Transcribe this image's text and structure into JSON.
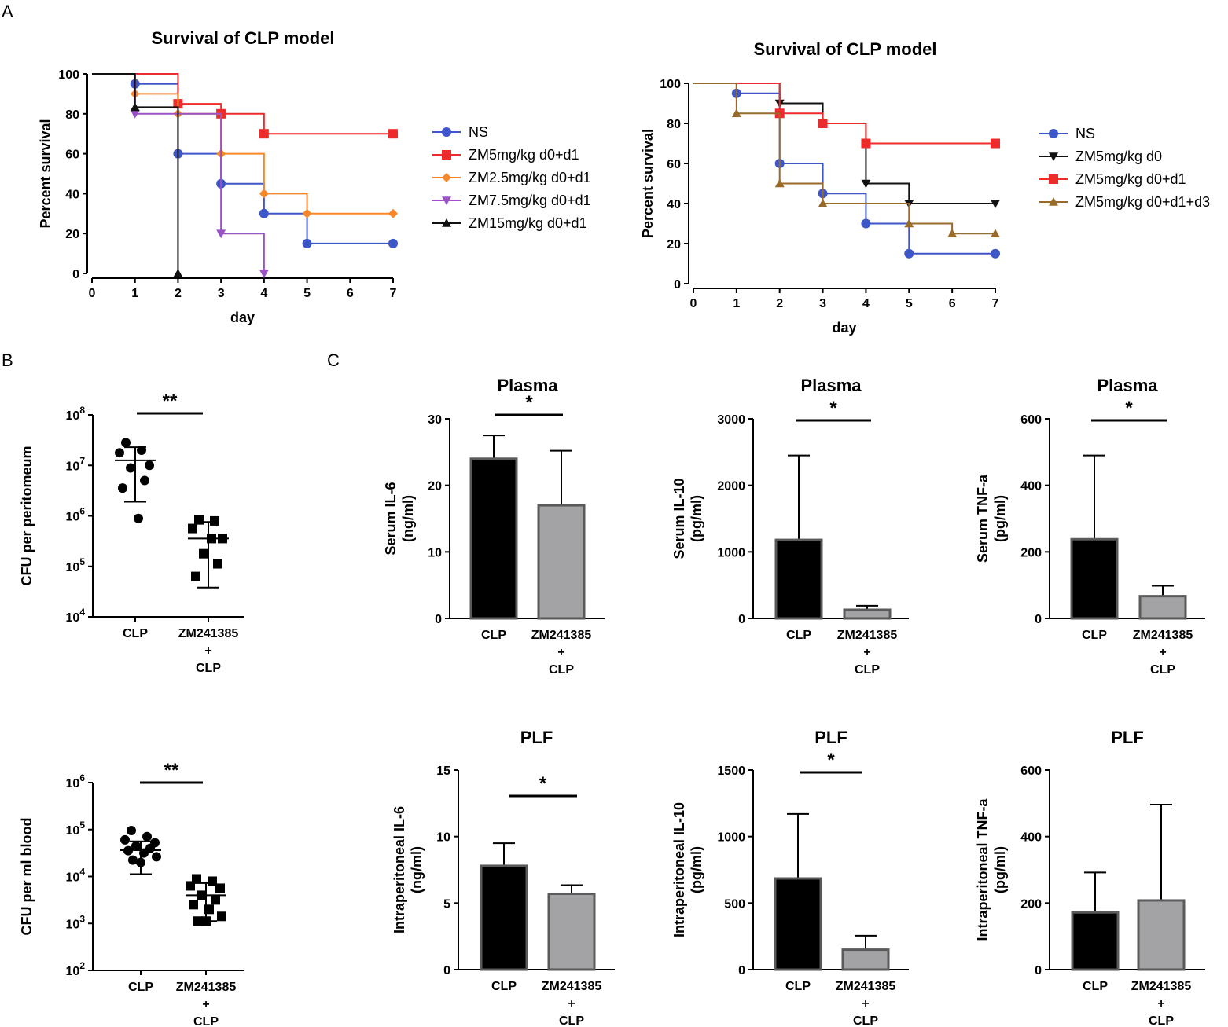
{
  "panel_labels": {
    "A": "A",
    "B": "B",
    "C": "C"
  },
  "colors": {
    "NS": "#3d56c8",
    "ZM5_d0d1": "#ee2b2b",
    "ZM2.5_d0d1": "#f7882a",
    "ZM7.5_d0d1": "#9a52c6",
    "ZM15_d0d1": "#111111",
    "ZM5_d0": "#111111",
    "ZM5_d0d1d3": "#9a6a2a",
    "bar_CLP": "#000000",
    "bar_ZM": "#a3a3a5"
  },
  "chart_data": [
    {
      "id": "A1",
      "type": "line",
      "subtype": "survival-step",
      "title": "Survival of CLP model",
      "xlabel": "day",
      "ylabel": "Percent survival",
      "xlim": [
        0,
        7
      ],
      "ylim": [
        0,
        100
      ],
      "xticks": [
        "0",
        "1",
        "2",
        "3",
        "4",
        "5",
        "6",
        "7"
      ],
      "yticks": [
        "0",
        "20",
        "40",
        "60",
        "80",
        "100"
      ],
      "series": [
        {
          "name": "NS",
          "color_key": "NS",
          "marker": "circle",
          "steps": [
            [
              0,
              100
            ],
            [
              1,
              95
            ],
            [
              2,
              60
            ],
            [
              3,
              45
            ],
            [
              4,
              30
            ],
            [
              5,
              15
            ],
            [
              7,
              15
            ]
          ],
          "marks": [
            [
              1,
              95
            ],
            [
              2,
              60
            ],
            [
              3,
              45
            ],
            [
              4,
              30
            ],
            [
              5,
              15
            ],
            [
              7,
              15
            ]
          ]
        },
        {
          "name": "ZM5mg/kg d0+d1",
          "color_key": "ZM5_d0d1",
          "marker": "square",
          "steps": [
            [
              0,
              100
            ],
            [
              2,
              85
            ],
            [
              3,
              80
            ],
            [
              4,
              70
            ],
            [
              7,
              70
            ]
          ],
          "marks": [
            [
              2,
              85
            ],
            [
              3,
              80
            ],
            [
              4,
              70
            ],
            [
              7,
              70
            ]
          ]
        },
        {
          "name": "ZM2.5mg/kg d0+d1",
          "color_key": "ZM2.5_d0d1",
          "marker": "diamond",
          "steps": [
            [
              0,
              100
            ],
            [
              1,
              90
            ],
            [
              2,
              80
            ],
            [
              3,
              60
            ],
            [
              4,
              40
            ],
            [
              5,
              30
            ],
            [
              7,
              30
            ]
          ],
          "marks": [
            [
              1,
              90
            ],
            [
              2,
              80
            ],
            [
              3,
              60
            ],
            [
              4,
              40
            ],
            [
              5,
              30
            ],
            [
              7,
              30
            ]
          ]
        },
        {
          "name": "ZM7.5mg/kg d0+d1",
          "color_key": "ZM7.5_d0d1",
          "marker": "tri-down",
          "steps": [
            [
              0,
              100
            ],
            [
              1,
              80
            ],
            [
              3,
              20
            ],
            [
              4,
              0
            ]
          ],
          "marks": [
            [
              1,
              80
            ],
            [
              3,
              20
            ],
            [
              4,
              0
            ]
          ]
        },
        {
          "name": "ZM15mg/kg d0+d1",
          "color_key": "ZM15_d0d1",
          "marker": "tri-up",
          "steps": [
            [
              0,
              100
            ],
            [
              1,
              83.3
            ],
            [
              2,
              0
            ]
          ],
          "marks": [
            [
              1,
              83.3
            ],
            [
              2,
              0
            ]
          ]
        }
      ]
    },
    {
      "id": "A2",
      "type": "line",
      "subtype": "survival-step",
      "title": "Survival of CLP model",
      "xlabel": "day",
      "ylabel": "Percent survival",
      "xlim": [
        0,
        7
      ],
      "ylim": [
        0,
        100
      ],
      "xticks": [
        "0",
        "1",
        "2",
        "3",
        "4",
        "5",
        "6",
        "7"
      ],
      "yticks": [
        "0",
        "20",
        "40",
        "60",
        "80",
        "100"
      ],
      "series": [
        {
          "name": "NS",
          "color_key": "NS",
          "marker": "circle",
          "steps": [
            [
              0,
              100
            ],
            [
              1,
              95
            ],
            [
              2,
              60
            ],
            [
              3,
              45
            ],
            [
              4,
              30
            ],
            [
              5,
              15
            ],
            [
              7,
              15
            ]
          ],
          "marks": [
            [
              1,
              95
            ],
            [
              2,
              60
            ],
            [
              3,
              45
            ],
            [
              4,
              30
            ],
            [
              5,
              15
            ],
            [
              7,
              15
            ]
          ]
        },
        {
          "name": "ZM5mg/kg d0",
          "color_key": "ZM5_d0",
          "marker": "tri-down",
          "steps": [
            [
              0,
              100
            ],
            [
              2,
              90
            ],
            [
              3,
              80
            ],
            [
              4,
              50
            ],
            [
              5,
              40
            ],
            [
              7,
              40
            ]
          ],
          "marks": [
            [
              2,
              90
            ],
            [
              4,
              50
            ],
            [
              5,
              40
            ],
            [
              7,
              40
            ]
          ]
        },
        {
          "name": "ZM5mg/kg d0+d1",
          "color_key": "ZM5_d0d1",
          "marker": "square",
          "steps": [
            [
              0,
              100
            ],
            [
              2,
              85
            ],
            [
              3,
              80
            ],
            [
              4,
              70
            ],
            [
              7,
              70
            ]
          ],
          "marks": [
            [
              2,
              85
            ],
            [
              3,
              80
            ],
            [
              4,
              70
            ],
            [
              7,
              70
            ]
          ]
        },
        {
          "name": "ZM5mg/kg d0+d1+d3",
          "color_key": "ZM5_d0d1d3",
          "marker": "tri-up",
          "steps": [
            [
              0,
              100
            ],
            [
              1,
              85
            ],
            [
              2,
              50
            ],
            [
              3,
              40
            ],
            [
              5,
              30
            ],
            [
              6,
              25
            ],
            [
              7,
              25
            ]
          ],
          "marks": [
            [
              1,
              85
            ],
            [
              2,
              50
            ],
            [
              3,
              40
            ],
            [
              5,
              30
            ],
            [
              6,
              25
            ],
            [
              7,
              25
            ]
          ]
        }
      ]
    },
    {
      "id": "B1",
      "type": "scatter",
      "subtype": "dot-log",
      "ylabel": "CFU per peritomeum",
      "ylog": true,
      "ylim_exp": [
        4,
        8
      ],
      "yticks": [
        {
          "base": "10",
          "exp": "4"
        },
        {
          "base": "10",
          "exp": "5"
        },
        {
          "base": "10",
          "exp": "6"
        },
        {
          "base": "10",
          "exp": "7"
        },
        {
          "base": "10",
          "exp": "8"
        }
      ],
      "categories": [
        [
          "CLP"
        ],
        [
          "ZM241385",
          "+",
          "CLP"
        ]
      ],
      "groups": [
        {
          "marker": "circle",
          "points": [
            7.45,
            7.3,
            7.25,
            7.0,
            6.95,
            6.7,
            6.55,
            5.95
          ],
          "mean": 7.1,
          "sd_low": 6.28,
          "sd_high": 7.36
        },
        {
          "marker": "square",
          "points": [
            5.92,
            5.9,
            5.75,
            5.55,
            5.25,
            5.05,
            4.8,
            5.55
          ],
          "mean": 5.55,
          "sd_low": 4.58,
          "sd_high": 5.88
        }
      ],
      "significance": "**"
    },
    {
      "id": "B2",
      "type": "scatter",
      "subtype": "dot-log",
      "ylabel": "CFU per ml blood",
      "ylog": true,
      "ylim_exp": [
        2,
        6
      ],
      "yticks": [
        {
          "base": "10",
          "exp": "2"
        },
        {
          "base": "10",
          "exp": "3"
        },
        {
          "base": "10",
          "exp": "4"
        },
        {
          "base": "10",
          "exp": "5"
        },
        {
          "base": "10",
          "exp": "6"
        }
      ],
      "categories": [
        [
          "CLP"
        ],
        [
          "ZM241385",
          "+",
          "CLP"
        ]
      ],
      "groups": [
        {
          "marker": "circle",
          "points": [
            4.98,
            4.85,
            4.78,
            4.72,
            4.65,
            4.6,
            4.55,
            4.5,
            4.42,
            4.35,
            4.3
          ],
          "mean": 4.56,
          "sd_low": 4.05,
          "sd_high": 4.75
        },
        {
          "marker": "square",
          "points": [
            3.95,
            3.9,
            3.8,
            3.75,
            3.6,
            3.5,
            3.4,
            3.3,
            3.15,
            3.05,
            3.05
          ],
          "mean": 3.6,
          "sd_low": 3.05,
          "sd_high": 3.86
        }
      ],
      "significance": "**"
    },
    {
      "id": "C1",
      "type": "bar",
      "title": "Plasma",
      "ylabel": [
        "Serum IL-6",
        "(ng/ml)"
      ],
      "ylim": [
        0,
        30
      ],
      "yticks": [
        "0",
        "10",
        "20",
        "30"
      ],
      "categories": [
        [
          "CLP"
        ],
        [
          "ZM241385",
          "+",
          "CLP"
        ]
      ],
      "values": [
        24,
        17
      ],
      "errors": [
        3.5,
        8.2
      ],
      "significance": "*"
    },
    {
      "id": "C2",
      "type": "bar",
      "title": "Plasma",
      "ylabel": [
        "Serum IL-10",
        "(pg/ml)"
      ],
      "ylim": [
        0,
        3000
      ],
      "yticks": [
        "0",
        "1000",
        "2000",
        "3000"
      ],
      "categories": [
        [
          "CLP"
        ],
        [
          "ZM241385",
          "+",
          "CLP"
        ]
      ],
      "values": [
        1180,
        130
      ],
      "errors": [
        1270,
        60
      ],
      "significance": "*"
    },
    {
      "id": "C3",
      "type": "bar",
      "title": "Plasma",
      "ylabel": [
        "Serum TNF-a",
        "(pg/ml)"
      ],
      "ylim": [
        0,
        600
      ],
      "yticks": [
        "0",
        "200",
        "400",
        "600"
      ],
      "categories": [
        [
          "CLP"
        ],
        [
          "ZM241385",
          "+",
          "CLP"
        ]
      ],
      "values": [
        238,
        67
      ],
      "errors": [
        252,
        31
      ],
      "significance": "*"
    },
    {
      "id": "C4",
      "type": "bar",
      "title": "PLF",
      "ylabel": [
        "Intraperitoneal IL-6",
        "(ng/ml)"
      ],
      "ylim": [
        0,
        15
      ],
      "yticks": [
        "0",
        "5",
        "10",
        "15"
      ],
      "categories": [
        [
          "CLP"
        ],
        [
          "ZM241385",
          "+",
          "CLP"
        ]
      ],
      "values": [
        7.8,
        5.7
      ],
      "errors": [
        1.7,
        0.65
      ],
      "significance": "*"
    },
    {
      "id": "C5",
      "type": "bar",
      "title": "PLF",
      "ylabel": [
        "Intraperitoneal IL-10",
        "(pg/ml)"
      ],
      "ylim": [
        0,
        1500
      ],
      "yticks": [
        "0",
        "500",
        "1000",
        "1500"
      ],
      "categories": [
        [
          "CLP"
        ],
        [
          "ZM241385",
          "+",
          "CLP"
        ]
      ],
      "values": [
        685,
        150
      ],
      "errors": [
        485,
        105
      ],
      "significance": "*"
    },
    {
      "id": "C6",
      "type": "bar",
      "title": "PLF",
      "ylabel": [
        "Intraperitoneal TNF-a",
        "(pg/ml)"
      ],
      "ylim": [
        0,
        600
      ],
      "yticks": [
        "0",
        "200",
        "400",
        "600"
      ],
      "categories": [
        [
          "CLP"
        ],
        [
          "ZM241385",
          "+",
          "CLP"
        ]
      ],
      "values": [
        172,
        208
      ],
      "errors": [
        120,
        288
      ],
      "significance": ""
    }
  ]
}
